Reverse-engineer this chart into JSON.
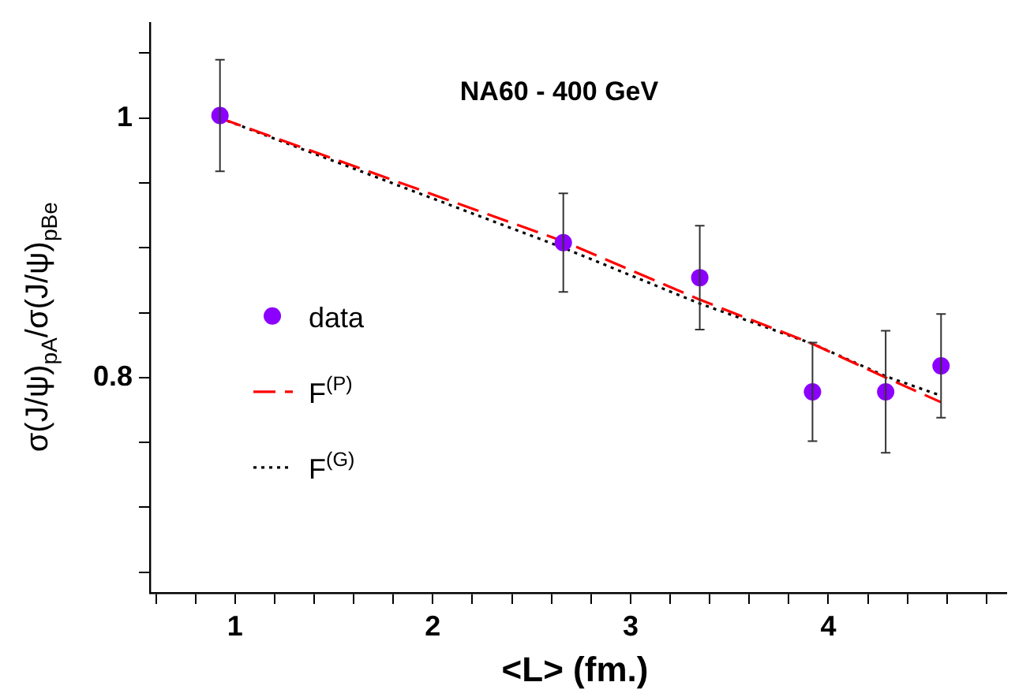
{
  "chart_data": {
    "type": "scatter",
    "title": "NA60 - 400 GeV",
    "xlabel": "<L> (fm.)",
    "ylabel": "σ(J/ψ)$_{pA}$/σ(J/ψ)$_{pBe}$",
    "xlim": [
      0.57,
      4.9
    ],
    "xticks": [
      {
        "value": 0.6,
        "label": null
      },
      {
        "value": 0.8,
        "label": null
      },
      1,
      {
        "value": 1.2,
        "label": null
      },
      {
        "value": 1.4,
        "label": null
      },
      {
        "value": 1.6,
        "label": null
      },
      {
        "value": 1.8,
        "label": null
      },
      2,
      {
        "value": 2.2,
        "label": null
      },
      {
        "value": 2.4,
        "label": null
      },
      {
        "value": 2.6,
        "label": null
      },
      {
        "value": 2.8,
        "label": null
      },
      3,
      {
        "value": 3.2,
        "label": null
      },
      {
        "value": 3.4,
        "label": null
      },
      {
        "value": 3.6,
        "label": null
      },
      {
        "value": 3.8,
        "label": null
      },
      4,
      {
        "value": 4.2,
        "label": null
      },
      {
        "value": 4.4,
        "label": null
      },
      {
        "value": 4.6,
        "label": null
      },
      {
        "value": 4.8,
        "label": null
      }
    ],
    "ylim": [
      0.634,
      1.073
    ],
    "yticks": [
      {
        "value": 0.65,
        "label": null
      },
      {
        "value": 0.7,
        "label": null
      },
      {
        "value": 0.75,
        "label": null
      },
      0.8,
      {
        "value": 0.85,
        "label": null
      },
      {
        "value": 0.9,
        "label": null
      },
      {
        "value": 0.95,
        "label": null
      },
      1,
      {
        "value": 1.05,
        "label": null
      }
    ],
    "grid": false,
    "legend": "left",
    "series": [
      {
        "name": "data",
        "marker": "circle",
        "color": "#8b00ff",
        "x": [
          0.924,
          2.66,
          3.35,
          3.92,
          4.29,
          4.57
        ],
        "values": [
          1.002,
          0.904,
          0.877,
          0.789,
          0.789,
          0.809
        ],
        "errors": [
          0.043,
          0.038,
          0.04,
          0.038,
          0.047,
          0.04
        ]
      },
      {
        "name": "F$^{(P)}$",
        "type": "line",
        "marker": "none",
        "line_style": "dashed",
        "color": "#ff0000",
        "x": [
          0.924,
          2.66,
          3.35,
          3.92,
          4.29,
          4.57
        ],
        "values": [
          1.0,
          0.905,
          0.86,
          0.826,
          0.8,
          0.781
        ]
      },
      {
        "name": "F$^{(G)}$",
        "type": "line",
        "marker": "none",
        "line_style": "dotted",
        "color": "#000000",
        "x": [
          0.924,
          2.66,
          3.35,
          3.92,
          4.29,
          4.57
        ],
        "values": [
          1.0,
          0.9,
          0.857,
          0.826,
          0.801,
          0.786
        ]
      }
    ]
  }
}
